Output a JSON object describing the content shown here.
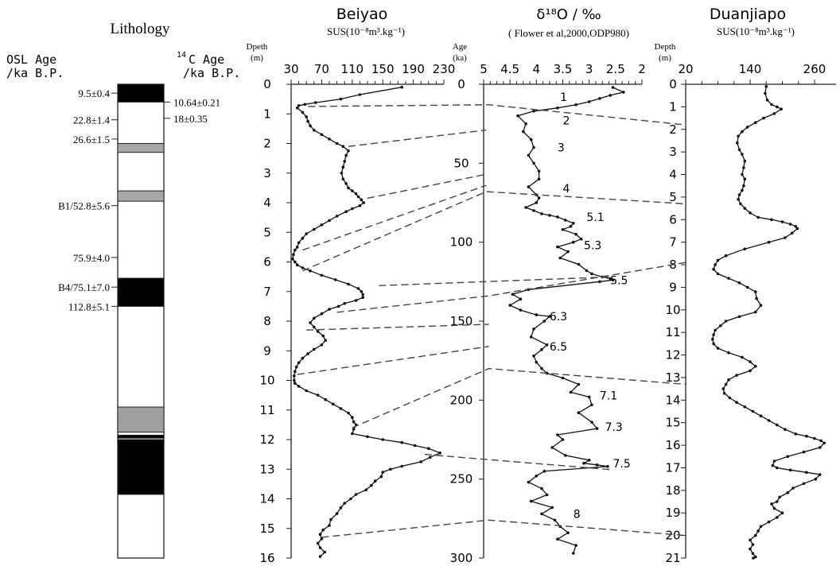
{
  "lithology": {
    "title": "Lithology",
    "osl_header": [
      "OSL Age",
      "/ka B.P."
    ],
    "c14_header_sup": "14",
    "c14_header": [
      "C Age",
      "/ka B.P."
    ],
    "osl_ages": [
      {
        "label": "9.5±0.4",
        "depth": 0.3
      },
      {
        "label": "22.8±1.4",
        "depth": 1.2
      },
      {
        "label": "26.6±1.5",
        "depth": 1.85
      },
      {
        "label": "B1/52.8±5.6",
        "depth": 4.1
      },
      {
        "label": "75.9±4.0",
        "depth": 5.85
      },
      {
        "label": "B4/75.1±7.0",
        "depth": 6.85
      },
      {
        "label": "112.8±5.1",
        "depth": 7.5
      }
    ],
    "c14_ages": [
      {
        "label": "10.64±0.21",
        "depth": 0.6
      },
      {
        "label": "18±0.35",
        "depth": 1.15
      }
    ],
    "units": [
      {
        "from": 0.0,
        "to": 0.6,
        "fill": "#000000"
      },
      {
        "from": 2.0,
        "to": 2.3,
        "fill": "#a8a8a8"
      },
      {
        "from": 3.6,
        "to": 3.95,
        "fill": "#a8a8a8"
      },
      {
        "from": 6.55,
        "to": 7.5,
        "fill": "#000000"
      },
      {
        "from": 10.9,
        "to": 11.75,
        "fill": "#a0a0a0"
      },
      {
        "from": 11.85,
        "to": 11.95,
        "fill": "#000000"
      },
      {
        "from": 12.0,
        "to": 13.85,
        "fill": "#000000"
      }
    ]
  },
  "chart_data": [
    {
      "type": "line",
      "title": "Beiyao",
      "xlabel": "SUS(10⁻⁸m³.kg⁻¹)",
      "ylabel": "Dpeth (m)",
      "xticks": [
        30,
        70,
        110,
        150,
        190,
        230
      ],
      "xlim": [
        30,
        230
      ],
      "ylim": [
        0,
        16
      ],
      "yticks": [
        0,
        1,
        2,
        3,
        4,
        5,
        6,
        7,
        8,
        9,
        10,
        11,
        12,
        13,
        14,
        15,
        16
      ],
      "series": [
        {
          "x": [
            175,
            120,
            95,
            62,
            48,
            40,
            38,
            45,
            50,
            52,
            55,
            60,
            70,
            80,
            90,
            98,
            105,
            102,
            100,
            98,
            96,
            98,
            102,
            105,
            110,
            115,
            118,
            122,
            125,
            120,
            110,
            102,
            90,
            80,
            70,
            60,
            50,
            45,
            40,
            38,
            35,
            33,
            32,
            35,
            38,
            45,
            55,
            70,
            88,
            105,
            118,
            122,
            124,
            124,
            115,
            100,
            92,
            80,
            70,
            60,
            55,
            60,
            65,
            72,
            75,
            70,
            60,
            52,
            45,
            40,
            37,
            35,
            34,
            34,
            35,
            40,
            50,
            65,
            75,
            85,
            95,
            105,
            110,
            112,
            115,
            112,
            110,
            130,
            150,
            175,
            192,
            210,
            225,
            212,
            200,
            175,
            160,
            150,
            148,
            140,
            135,
            128,
            115,
            108,
            100,
            95,
            90,
            82,
            80,
            72,
            68,
            70,
            65,
            68,
            74,
            68
          ],
          "y": [
            0.1,
            0.35,
            0.5,
            0.62,
            0.68,
            0.72,
            0.8,
            0.95,
            1.1,
            1.25,
            1.4,
            1.55,
            1.7,
            1.85,
            2.0,
            2.1,
            2.25,
            2.4,
            2.6,
            2.8,
            3.0,
            3.2,
            3.35,
            3.5,
            3.6,
            3.7,
            3.8,
            3.9,
            4.0,
            4.1,
            4.2,
            4.3,
            4.45,
            4.6,
            4.75,
            4.9,
            5.05,
            5.2,
            5.35,
            5.5,
            5.6,
            5.75,
            5.9,
            6.0,
            6.1,
            6.2,
            6.3,
            6.45,
            6.6,
            6.75,
            6.9,
            7.0,
            7.1,
            7.2,
            7.3,
            7.4,
            7.5,
            7.6,
            7.75,
            7.9,
            8.05,
            8.2,
            8.35,
            8.5,
            8.65,
            8.8,
            8.95,
            9.1,
            9.25,
            9.4,
            9.55,
            9.7,
            9.85,
            10.0,
            10.1,
            10.2,
            10.35,
            10.5,
            10.65,
            10.8,
            10.95,
            11.1,
            11.25,
            11.4,
            11.5,
            11.65,
            11.8,
            11.9,
            12.0,
            12.1,
            12.2,
            12.3,
            12.45,
            12.6,
            12.75,
            12.9,
            13.0,
            13.1,
            13.25,
            13.4,
            13.55,
            13.7,
            13.85,
            14.0,
            14.15,
            14.3,
            14.5,
            14.7,
            14.9,
            15.05,
            15.2,
            15.35,
            15.5,
            15.65,
            15.8,
            15.95
          ]
        }
      ]
    },
    {
      "type": "line",
      "title": "δ¹⁸O / ‰",
      "subtitle": "( Flower et al,2000,ODP980)",
      "xlabel": "",
      "ylabel": "Age (ka)",
      "xticks": [
        5,
        4.5,
        4,
        3.5,
        3,
        2.5,
        2
      ],
      "xlim": [
        5,
        2
      ],
      "ylim": [
        0,
        300
      ],
      "yticks": [
        0,
        50,
        100,
        150,
        200,
        250,
        300
      ],
      "stage_labels": [
        {
          "label": "1",
          "x": 3.55,
          "y": 8
        },
        {
          "label": "2",
          "x": 3.5,
          "y": 23
        },
        {
          "label": "3",
          "x": 3.6,
          "y": 40
        },
        {
          "label": "4",
          "x": 3.5,
          "y": 66
        },
        {
          "label": "5.1",
          "x": 3.05,
          "y": 84
        },
        {
          "label": "5.3",
          "x": 3.1,
          "y": 102
        },
        {
          "label": "5.5",
          "x": 2.6,
          "y": 124
        },
        {
          "label": "6.3",
          "x": 3.75,
          "y": 147
        },
        {
          "label": "6.5",
          "x": 3.75,
          "y": 166
        },
        {
          "label": "7.1",
          "x": 2.8,
          "y": 197
        },
        {
          "label": "7.3",
          "x": 2.7,
          "y": 217
        },
        {
          "label": "7.5",
          "x": 2.55,
          "y": 240
        },
        {
          "label": "8",
          "x": 3.3,
          "y": 272
        }
      ],
      "series": [
        {
          "x": [
            2.55,
            2.35,
            2.6,
            2.8,
            3.0,
            3.25,
            3.6,
            4.05,
            4.35,
            4.2,
            4.25,
            4.1,
            4.05,
            4.15,
            4.05,
            3.95,
            3.95,
            4.15,
            4.0,
            3.95,
            4.0,
            4.2,
            4.05,
            3.9,
            3.75,
            3.6,
            3.45,
            3.3,
            3.35,
            3.5,
            3.25,
            3.15,
            3.3,
            3.6,
            3.4,
            3.55,
            3.2,
            3.05,
            2.95,
            2.75,
            2.6,
            2.55,
            2.8,
            4.15,
            4.45,
            4.3,
            4.5,
            4.3,
            4.0,
            3.75,
            3.85,
            4.05,
            4.1,
            3.8,
            3.9,
            4.05,
            4.0,
            3.9,
            3.8,
            3.5,
            3.2,
            3.35,
            3.0,
            2.95,
            3.2,
            2.95,
            2.85,
            3.6,
            3.5,
            3.7,
            3.45,
            3.0,
            3.1,
            2.85,
            2.65,
            3.85,
            4.0,
            4.15,
            3.9,
            3.8,
            4.1,
            3.7,
            3.9,
            3.65,
            3.55,
            3.4,
            3.6,
            3.25,
            3.3
          ],
          "y": [
            2,
            5,
            7,
            9,
            11,
            13,
            15,
            17,
            20,
            25,
            30,
            35,
            40,
            45,
            50,
            55,
            60,
            65,
            70,
            72,
            75,
            78,
            80,
            82,
            83,
            84,
            86,
            88,
            90,
            92,
            95,
            98,
            100,
            103,
            106,
            110,
            114,
            118,
            120,
            122,
            123,
            124,
            125,
            130,
            133,
            136,
            140,
            143,
            146,
            147,
            150,
            155,
            160,
            165,
            168,
            172,
            176,
            180,
            183,
            186,
            190,
            195,
            198,
            203,
            208,
            214,
            218,
            222,
            225,
            230,
            235,
            238,
            240,
            241,
            242,
            245,
            248,
            252,
            256,
            260,
            264,
            268,
            272,
            276,
            280,
            284,
            288,
            292,
            297
          ]
        }
      ]
    },
    {
      "type": "line",
      "title": "Duanjiapo",
      "xlabel": "SUS(10⁻⁸m³.kg⁻¹)",
      "ylabel": "Depth (m)",
      "xticks": [
        20,
        140,
        260
      ],
      "xlim": [
        20,
        300
      ],
      "ylim": [
        0,
        21
      ],
      "yticks": [
        0,
        1,
        2,
        3,
        4,
        5,
        6,
        7,
        8,
        9,
        10,
        11,
        12,
        13,
        14,
        15,
        16,
        17,
        18,
        19,
        20,
        21
      ],
      "series": [
        {
          "x": [
            170,
            168,
            172,
            180,
            190,
            198,
            185,
            165,
            150,
            135,
            125,
            118,
            116,
            120,
            125,
            130,
            128,
            125,
            130,
            128,
            125,
            120,
            118,
            122,
            130,
            140,
            155,
            180,
            200,
            215,
            225,
            228,
            218,
            205,
            175,
            130,
            95,
            80,
            75,
            72,
            80,
            100,
            120,
            135,
            150,
            152,
            160,
            150,
            120,
            95,
            85,
            75,
            72,
            70,
            72,
            80,
            100,
            125,
            140,
            150,
            140,
            115,
            100,
            95,
            90,
            92,
            102,
            115,
            130,
            145,
            160,
            175,
            190,
            205,
            225,
            245,
            260,
            272,
            278,
            270,
            240,
            210,
            185,
            182,
            190,
            215,
            245,
            270,
            262,
            240,
            220,
            210,
            195,
            190,
            180,
            185,
            200,
            190,
            175,
            160,
            155,
            150,
            140,
            145,
            140,
            145,
            150,
            146
          ],
          "y": [
            0.1,
            0.4,
            0.7,
            0.9,
            1.0,
            1.1,
            1.3,
            1.5,
            1.7,
            1.9,
            2.1,
            2.3,
            2.6,
            2.9,
            3.1,
            3.4,
            3.7,
            4.0,
            4.2,
            4.5,
            4.7,
            4.9,
            5.1,
            5.3,
            5.5,
            5.7,
            5.9,
            6.0,
            6.1,
            6.2,
            6.3,
            6.4,
            6.6,
            6.8,
            7.0,
            7.3,
            7.6,
            7.8,
            8.0,
            8.2,
            8.4,
            8.6,
            8.8,
            9.0,
            9.2,
            9.5,
            9.8,
            10.1,
            10.3,
            10.5,
            10.7,
            10.9,
            11.1,
            11.3,
            11.5,
            11.7,
            11.9,
            12.1,
            12.3,
            12.5,
            12.7,
            12.9,
            13.1,
            13.3,
            13.5,
            13.7,
            13.9,
            14.1,
            14.3,
            14.5,
            14.7,
            14.9,
            15.1,
            15.3,
            15.5,
            15.6,
            15.7,
            15.8,
            15.9,
            16.1,
            16.3,
            16.5,
            16.7,
            16.9,
            17.0,
            17.1,
            17.2,
            17.3,
            17.5,
            17.7,
            17.9,
            18.1,
            18.3,
            18.5,
            18.6,
            18.8,
            19.0,
            19.2,
            19.4,
            19.6,
            19.8,
            20.0,
            20.2,
            20.4,
            20.6,
            20.8,
            20.95,
            21.0
          ]
        }
      ]
    }
  ],
  "correlation_lines": [
    {
      "a": {
        "col": "beiyao",
        "x": 52,
        "v": 0.75
      },
      "b": {
        "col": "odp",
        "x": 4.9,
        "v": 13
      },
      "c": {
        "col": "duanjiapo",
        "x": 20,
        "v": 1.8
      }
    },
    {
      "a": {
        "col": "beiyao",
        "x": 105,
        "v": 2.1
      },
      "b": {
        "col": "odp",
        "x": 4.95,
        "v": 29
      }
    },
    {
      "a": {
        "col": "beiyao",
        "x": 130,
        "v": 3.85
      },
      "b": {
        "col": "odp",
        "x": 4.95,
        "v": 57
      }
    },
    {
      "a": {
        "col": "beiyao",
        "x": 45,
        "v": 5.6
      },
      "b": {
        "col": "odp",
        "x": 4.95,
        "v": 64
      }
    },
    {
      "a": {
        "col": "beiyao",
        "x": 45,
        "v": 6.3
      },
      "b": {
        "col": "odp",
        "x": 4.95,
        "v": 68
      },
      "c": {
        "col": "duanjiapo",
        "x": 20,
        "v": 5.3
      }
    },
    {
      "a": {
        "col": "beiyao",
        "x": 145,
        "v": 6.8
      },
      "b": {
        "col": "odp",
        "x": 2.6,
        "v": 122
      }
    },
    {
      "a": {
        "col": "beiyao",
        "x": 90,
        "v": 7.7
      },
      "b": {
        "col": "odp",
        "x": 4.9,
        "v": 134
      },
      "c": {
        "col": "duanjiapo",
        "x": 20,
        "v": 7.9
      }
    },
    {
      "a": {
        "col": "beiyao",
        "x": 50,
        "v": 8.3
      },
      "b": {
        "col": "odp",
        "x": 4.9,
        "v": 152
      }
    },
    {
      "a": {
        "col": "beiyao",
        "x": 38,
        "v": 9.8
      },
      "b": {
        "col": "odp",
        "x": 4.9,
        "v": 166
      }
    },
    {
      "a": {
        "col": "beiyao",
        "x": 110,
        "v": 11.6
      },
      "b": {
        "col": "odp",
        "x": 4.9,
        "v": 180
      },
      "c": {
        "col": "duanjiapo",
        "x": 20,
        "v": 13.3
      }
    },
    {
      "a": {
        "col": "beiyao",
        "x": 205,
        "v": 12.5
      },
      "b": {
        "col": "odp",
        "x": 2.6,
        "v": 244
      }
    },
    {
      "a": {
        "col": "beiyao",
        "x": 70,
        "v": 15.3
      },
      "b": {
        "col": "odp",
        "x": 4.9,
        "v": 276
      },
      "c": {
        "col": "duanjiapo",
        "x": 20,
        "v": 20.0
      }
    }
  ]
}
